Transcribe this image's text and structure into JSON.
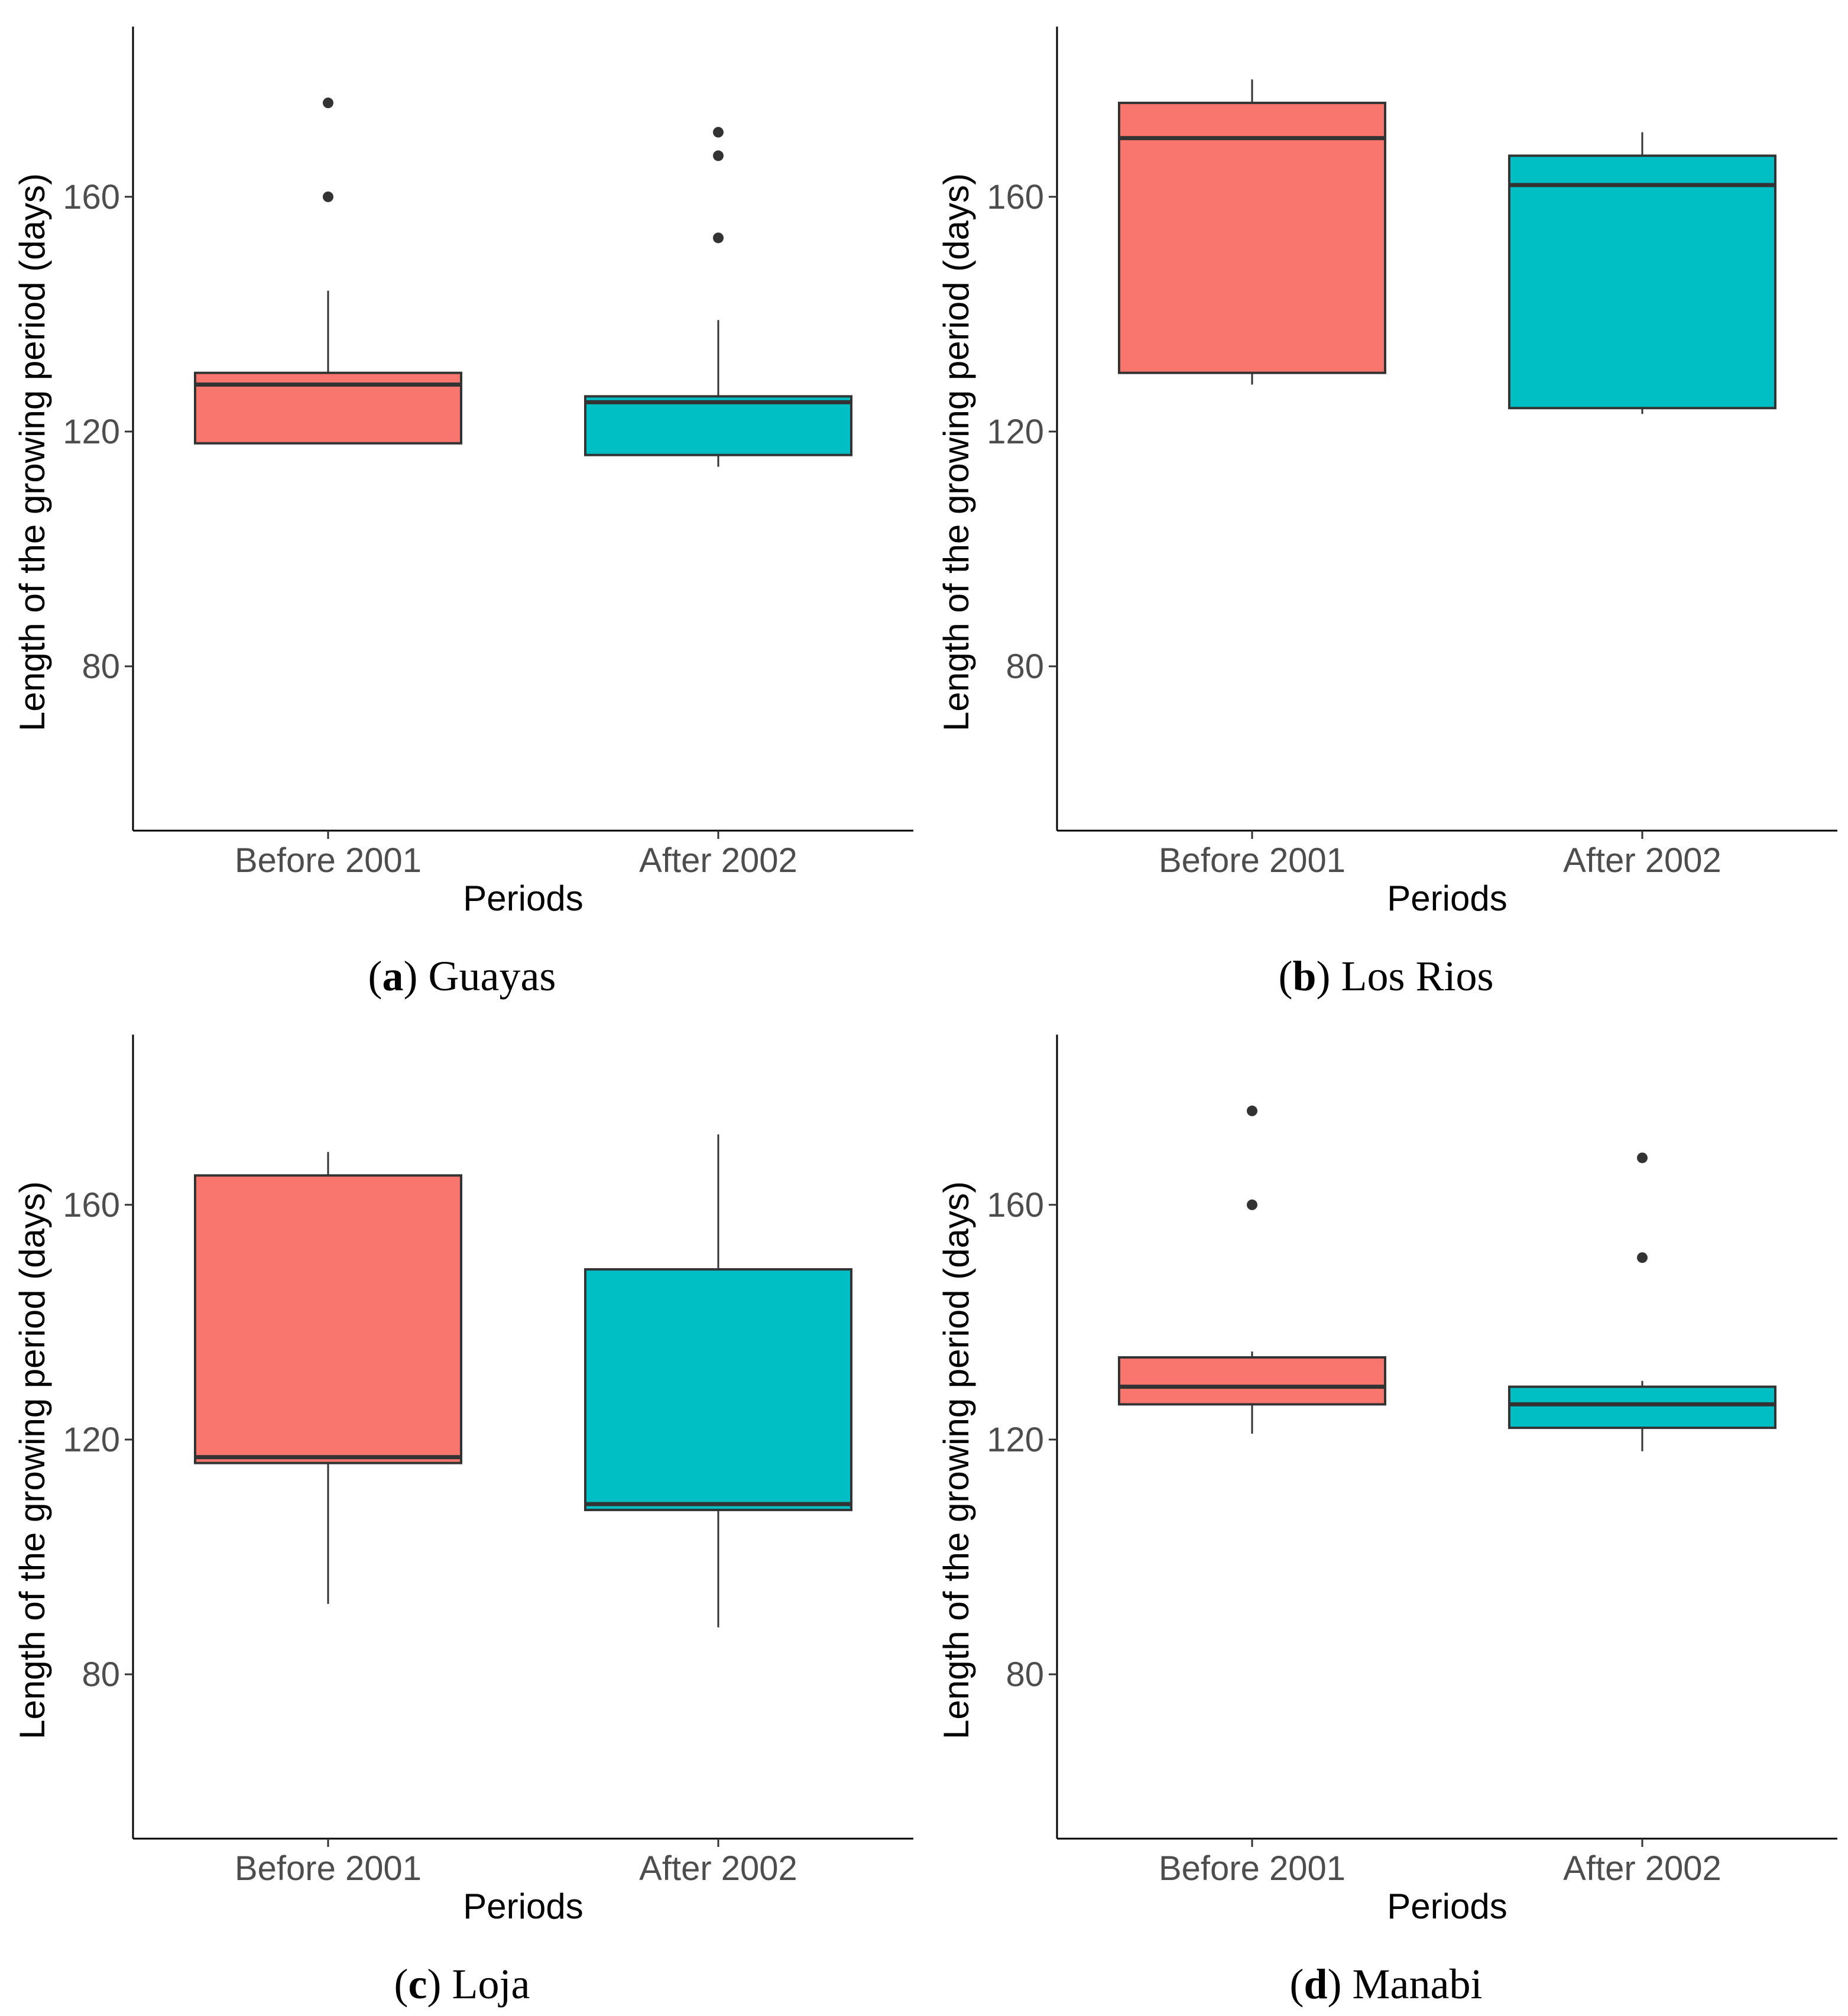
{
  "chart_data": [
    {
      "type": "boxplot",
      "title": "Guayas",
      "caption_letter": "a",
      "caption_name": "Guayas",
      "xlabel": "Periods",
      "ylabel": "Length of the growing period (days)",
      "ylim": [
        52,
        189
      ],
      "yticks": [
        80,
        120,
        160
      ],
      "categories": [
        "Before 2001",
        "After 2002"
      ],
      "colors": [
        "#F8766D",
        "#00BFC4"
      ],
      "boxes": [
        {
          "q1": 118,
          "median": 128,
          "q3": 130,
          "whisker_low": 118,
          "whisker_high": 144,
          "outliers": [
            176,
            160
          ]
        },
        {
          "q1": 116,
          "median": 125,
          "q3": 126,
          "whisker_low": 114,
          "whisker_high": 139,
          "outliers": [
            171,
            167,
            153
          ]
        }
      ]
    },
    {
      "type": "boxplot",
      "title": "Los Rios",
      "caption_letter": "b",
      "caption_name": "Los Rios",
      "xlabel": "Periods",
      "ylabel": "Length of the growing period (days)",
      "ylim": [
        52,
        189
      ],
      "yticks": [
        80,
        120,
        160
      ],
      "categories": [
        "Before 2001",
        "After 2002"
      ],
      "colors": [
        "#F8766D",
        "#00BFC4"
      ],
      "boxes": [
        {
          "q1": 130,
          "median": 170,
          "q3": 176,
          "whisker_low": 128,
          "whisker_high": 180,
          "outliers": []
        },
        {
          "q1": 124,
          "median": 162,
          "q3": 167,
          "whisker_low": 123,
          "whisker_high": 171,
          "outliers": []
        }
      ]
    },
    {
      "type": "boxplot",
      "title": "Loja",
      "caption_letter": "c",
      "caption_name": "Loja",
      "xlabel": "Periods",
      "ylabel": "Length of the growing period (days)",
      "ylim": [
        52,
        189
      ],
      "yticks": [
        80,
        120,
        160
      ],
      "categories": [
        "Before 2001",
        "After 2002"
      ],
      "colors": [
        "#F8766D",
        "#00BFC4"
      ],
      "boxes": [
        {
          "q1": 116,
          "median": 117,
          "q3": 165,
          "whisker_low": 92,
          "whisker_high": 169,
          "outliers": []
        },
        {
          "q1": 108,
          "median": 109,
          "q3": 149,
          "whisker_low": 88,
          "whisker_high": 172,
          "outliers": []
        }
      ]
    },
    {
      "type": "boxplot",
      "title": "Manabi",
      "caption_letter": "d",
      "caption_name": "Manabi",
      "xlabel": "Periods",
      "ylabel": "Length of the growing period (days)",
      "ylim": [
        52,
        189
      ],
      "yticks": [
        80,
        120,
        160
      ],
      "categories": [
        "Before 2001",
        "After 2002"
      ],
      "colors": [
        "#F8766D",
        "#00BFC4"
      ],
      "boxes": [
        {
          "q1": 126,
          "median": 129,
          "q3": 134,
          "whisker_low": 121,
          "whisker_high": 135,
          "outliers": [
            176,
            160
          ]
        },
        {
          "q1": 122,
          "median": 126,
          "q3": 129,
          "whisker_low": 118,
          "whisker_high": 130,
          "outliers": [
            168,
            151
          ]
        }
      ]
    }
  ]
}
